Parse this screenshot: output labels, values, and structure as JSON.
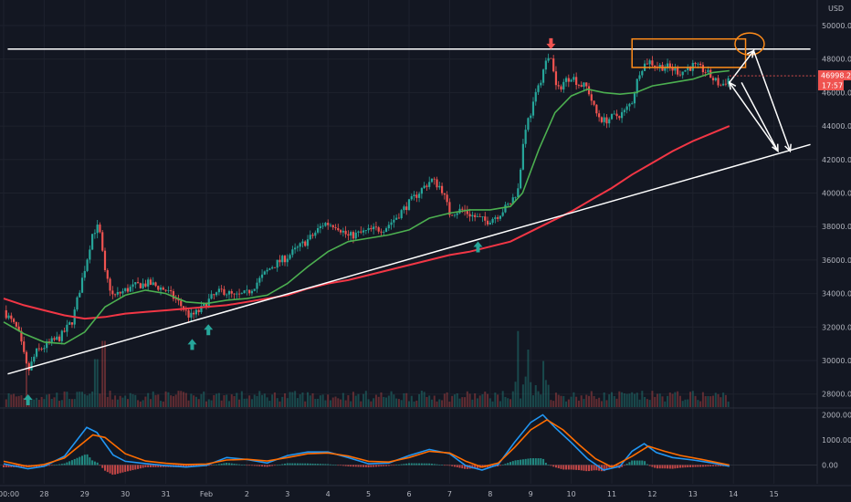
{
  "colors": {
    "background": "#131722",
    "up_candle": "#26a69a",
    "down_candle": "#ef5350",
    "ma_fast": "#4caf50",
    "ma_slow": "#f23645",
    "macd": "#2196f3",
    "signal": "#ff6d00",
    "annotation_white": "#ffffff",
    "annotation_orange": "#ff8c1a",
    "arrow_green": "#26a69a",
    "arrow_red": "#ef5350",
    "price_tag": "#ef5350"
  },
  "chart_data": [
    {
      "type": "candlestick",
      "title": "",
      "currency_label": "USD",
      "price_tag": "46998.29",
      "countdown_tag": "17:57",
      "y_ticks": [
        28000,
        30000,
        32000,
        34000,
        36000,
        38000,
        40000,
        42000,
        44000,
        46000,
        48000,
        50000
      ],
      "y_tick_labels": [
        "28000.00",
        "30000.00",
        "32000.00",
        "34000.00",
        "36000.00",
        "38000.00",
        "40000.00",
        "42000.00",
        "44000.00",
        "46000.00",
        "48000.00",
        "50000.00"
      ],
      "ylim": [
        27400,
        51300
      ],
      "x_ticks": [
        {
          "label": "00:00",
          "x": 0
        },
        {
          "label": "28",
          "x": 1
        },
        {
          "label": "29",
          "x": 2
        },
        {
          "label": "30",
          "x": 3
        },
        {
          "label": "31",
          "x": 4
        },
        {
          "label": "Feb",
          "x": 5
        },
        {
          "label": "2",
          "x": 6
        },
        {
          "label": "3",
          "x": 7
        },
        {
          "label": "4",
          "x": 8
        },
        {
          "label": "5",
          "x": 9
        },
        {
          "label": "6",
          "x": 10
        },
        {
          "label": "7",
          "x": 11
        },
        {
          "label": "8",
          "x": 12
        },
        {
          "label": "9",
          "x": 13
        },
        {
          "label": "10",
          "x": 14
        },
        {
          "label": "11",
          "x": 15
        },
        {
          "label": "12",
          "x": 16
        },
        {
          "label": "13",
          "x": 17
        },
        {
          "label": "14",
          "x": 18
        },
        {
          "label": "15",
          "x": 19
        }
      ],
      "x_unit": "days since 00:00",
      "xlim": [
        0,
        20.2
      ],
      "price_path": [
        [
          0.0,
          33000
        ],
        [
          0.35,
          31800
        ],
        [
          0.6,
          29300
        ],
        [
          0.8,
          30500
        ],
        [
          1.1,
          31000
        ],
        [
          1.4,
          31400
        ],
        [
          1.7,
          32400
        ],
        [
          1.9,
          34500
        ],
        [
          2.05,
          36000
        ],
        [
          2.2,
          37700
        ],
        [
          2.35,
          38000
        ],
        [
          2.5,
          35200
        ],
        [
          2.7,
          33800
        ],
        [
          3.0,
          34200
        ],
        [
          3.3,
          34500
        ],
        [
          3.6,
          34600
        ],
        [
          4.0,
          34200
        ],
        [
          4.3,
          33500
        ],
        [
          4.6,
          32600
        ],
        [
          4.85,
          33000
        ],
        [
          5.1,
          33700
        ],
        [
          5.4,
          34200
        ],
        [
          5.7,
          33800
        ],
        [
          6.0,
          34000
        ],
        [
          6.3,
          34800
        ],
        [
          6.6,
          35600
        ],
        [
          7.0,
          36200
        ],
        [
          7.3,
          36800
        ],
        [
          7.6,
          37400
        ],
        [
          7.9,
          38200
        ],
        [
          8.2,
          38100
        ],
        [
          8.5,
          37400
        ],
        [
          8.8,
          37600
        ],
        [
          9.1,
          37800
        ],
        [
          9.4,
          37900
        ],
        [
          9.7,
          38600
        ],
        [
          10.0,
          39400
        ],
        [
          10.3,
          40200
        ],
        [
          10.55,
          40800
        ],
        [
          10.8,
          40300
        ],
        [
          11.0,
          38800
        ],
        [
          11.3,
          39000
        ],
        [
          11.6,
          38600
        ],
        [
          11.9,
          38300
        ],
        [
          12.2,
          38700
        ],
        [
          12.5,
          39400
        ],
        [
          12.7,
          40300
        ],
        [
          12.85,
          43800
        ],
        [
          13.0,
          44800
        ],
        [
          13.2,
          46400
        ],
        [
          13.35,
          47700
        ],
        [
          13.5,
          48100
        ],
        [
          13.65,
          46000
        ],
        [
          13.8,
          46600
        ],
        [
          14.0,
          47000
        ],
        [
          14.2,
          46500
        ],
        [
          14.4,
          46300
        ],
        [
          14.6,
          44800
        ],
        [
          14.8,
          44300
        ],
        [
          15.0,
          44500
        ],
        [
          15.3,
          44800
        ],
        [
          15.5,
          45500
        ],
        [
          15.7,
          47400
        ],
        [
          15.9,
          47900
        ],
        [
          16.1,
          47600
        ],
        [
          16.4,
          47500
        ],
        [
          16.7,
          47200
        ],
        [
          17.0,
          47600
        ],
        [
          17.3,
          47300
        ],
        [
          17.5,
          46800
        ],
        [
          17.7,
          46400
        ],
        [
          17.9,
          46900
        ]
      ],
      "ma_fast": [
        [
          0.0,
          32300
        ],
        [
          0.5,
          31600
        ],
        [
          1.0,
          31100
        ],
        [
          1.5,
          31000
        ],
        [
          2.0,
          31700
        ],
        [
          2.5,
          33200
        ],
        [
          3.0,
          33900
        ],
        [
          3.5,
          34200
        ],
        [
          4.0,
          34000
        ],
        [
          4.5,
          33500
        ],
        [
          5.0,
          33400
        ],
        [
          5.5,
          33600
        ],
        [
          6.0,
          33700
        ],
        [
          6.5,
          33900
        ],
        [
          7.0,
          34600
        ],
        [
          7.5,
          35600
        ],
        [
          8.0,
          36500
        ],
        [
          8.5,
          37100
        ],
        [
          9.0,
          37300
        ],
        [
          9.5,
          37500
        ],
        [
          10.0,
          37800
        ],
        [
          10.5,
          38500
        ],
        [
          11.0,
          38800
        ],
        [
          11.5,
          39000
        ],
        [
          12.0,
          39000
        ],
        [
          12.5,
          39200
        ],
        [
          12.8,
          40000
        ],
        [
          13.2,
          42600
        ],
        [
          13.6,
          44800
        ],
        [
          14.0,
          45800
        ],
        [
          14.4,
          46200
        ],
        [
          14.8,
          46000
        ],
        [
          15.2,
          45900
        ],
        [
          15.6,
          46000
        ],
        [
          16.0,
          46400
        ],
        [
          16.5,
          46600
        ],
        [
          17.0,
          46800
        ],
        [
          17.5,
          47200
        ],
        [
          17.9,
          47300
        ]
      ],
      "ma_slow": [
        [
          0.0,
          33700
        ],
        [
          0.5,
          33300
        ],
        [
          1.0,
          33000
        ],
        [
          1.5,
          32700
        ],
        [
          2.0,
          32500
        ],
        [
          2.5,
          32600
        ],
        [
          3.0,
          32800
        ],
        [
          3.5,
          32900
        ],
        [
          4.0,
          33000
        ],
        [
          4.5,
          33100
        ],
        [
          5.0,
          33200
        ],
        [
          5.5,
          33300
        ],
        [
          6.0,
          33500
        ],
        [
          6.5,
          33700
        ],
        [
          7.0,
          33900
        ],
        [
          7.5,
          34300
        ],
        [
          8.0,
          34600
        ],
        [
          8.5,
          34800
        ],
        [
          9.0,
          35100
        ],
        [
          9.5,
          35400
        ],
        [
          10.0,
          35700
        ],
        [
          10.5,
          36000
        ],
        [
          11.0,
          36300
        ],
        [
          11.5,
          36500
        ],
        [
          12.0,
          36800
        ],
        [
          12.5,
          37100
        ],
        [
          13.0,
          37700
        ],
        [
          13.5,
          38300
        ],
        [
          14.0,
          38900
        ],
        [
          14.5,
          39600
        ],
        [
          15.0,
          40300
        ],
        [
          15.5,
          41100
        ],
        [
          16.0,
          41800
        ],
        [
          16.5,
          42500
        ],
        [
          17.0,
          43100
        ],
        [
          17.5,
          43600
        ],
        [
          17.9,
          44000
        ]
      ],
      "volume_spikes": [
        [
          0.55,
          0.55
        ],
        [
          2.45,
          0.85
        ],
        [
          12.7,
          1.0
        ],
        [
          12.95,
          0.55
        ],
        [
          13.3,
          0.4
        ],
        [
          2.3,
          0.45
        ]
      ],
      "macd_path": [
        [
          0.0,
          50
        ],
        [
          0.6,
          -150
        ],
        [
          1.0,
          -50
        ],
        [
          1.5,
          350
        ],
        [
          2.05,
          1500
        ],
        [
          2.3,
          1300
        ],
        [
          2.7,
          400
        ],
        [
          3.0,
          150
        ],
        [
          3.5,
          60
        ],
        [
          4.0,
          -20
        ],
        [
          4.5,
          -80
        ],
        [
          5.0,
          -10
        ],
        [
          5.5,
          300
        ],
        [
          6.0,
          220
        ],
        [
          6.5,
          80
        ],
        [
          7.0,
          380
        ],
        [
          7.5,
          520
        ],
        [
          8.0,
          520
        ],
        [
          8.5,
          300
        ],
        [
          9.0,
          50
        ],
        [
          9.5,
          80
        ],
        [
          10.0,
          380
        ],
        [
          10.5,
          620
        ],
        [
          11.0,
          450
        ],
        [
          11.4,
          -30
        ],
        [
          11.8,
          -200
        ],
        [
          12.2,
          20
        ],
        [
          12.6,
          900
        ],
        [
          13.0,
          1700
        ],
        [
          13.3,
          2000
        ],
        [
          13.6,
          1500
        ],
        [
          14.0,
          900
        ],
        [
          14.4,
          250
        ],
        [
          14.8,
          -200
        ],
        [
          15.2,
          -50
        ],
        [
          15.5,
          550
        ],
        [
          15.8,
          850
        ],
        [
          16.1,
          500
        ],
        [
          16.5,
          300
        ],
        [
          17.0,
          200
        ],
        [
          17.5,
          80
        ],
        [
          17.9,
          -50
        ]
      ],
      "signal_path": [
        [
          0.0,
          150
        ],
        [
          0.6,
          -60
        ],
        [
          1.0,
          20
        ],
        [
          1.5,
          280
        ],
        [
          2.2,
          1200
        ],
        [
          2.5,
          1100
        ],
        [
          3.0,
          450
        ],
        [
          3.5,
          160
        ],
        [
          4.0,
          70
        ],
        [
          4.5,
          20
        ],
        [
          5.0,
          40
        ],
        [
          5.5,
          200
        ],
        [
          6.0,
          230
        ],
        [
          6.5,
          160
        ],
        [
          7.0,
          300
        ],
        [
          7.5,
          450
        ],
        [
          8.0,
          480
        ],
        [
          8.5,
          360
        ],
        [
          9.0,
          150
        ],
        [
          9.5,
          120
        ],
        [
          10.0,
          300
        ],
        [
          10.5,
          550
        ],
        [
          11.0,
          480
        ],
        [
          11.4,
          150
        ],
        [
          11.8,
          -80
        ],
        [
          12.2,
          80
        ],
        [
          12.6,
          700
        ],
        [
          13.0,
          1400
        ],
        [
          13.4,
          1800
        ],
        [
          13.8,
          1400
        ],
        [
          14.2,
          800
        ],
        [
          14.6,
          250
        ],
        [
          15.0,
          -80
        ],
        [
          15.5,
          350
        ],
        [
          15.9,
          750
        ],
        [
          16.3,
          550
        ],
        [
          16.7,
          380
        ],
        [
          17.2,
          230
        ],
        [
          17.6,
          100
        ],
        [
          17.9,
          0
        ]
      ],
      "macd_ticks": [
        0,
        1000,
        2000
      ],
      "macd_tick_labels": [
        "0.00",
        "1000.00",
        "2000.00"
      ],
      "macd_ylim": [
        -800,
        2200
      ],
      "annotations": {
        "resistance_line": [
          [
            0.1,
            48600
          ],
          [
            19.9,
            48600
          ]
        ],
        "support_line": [
          [
            0.1,
            29200
          ],
          [
            19.9,
            42900
          ]
        ],
        "green_arrows_x": [
          0.6,
          4.65,
          5.05,
          11.7
        ],
        "red_arrow_x": 13.5,
        "orange_box": [
          15.5,
          18.3,
          47500,
          49200
        ],
        "orange_circle": [
          18.4,
          48900
        ],
        "projection": [
          [
            17.9,
            46600
          ],
          [
            18.5,
            48500
          ],
          [
            19.4,
            42500
          ],
          [
            18.2,
            46600
          ],
          [
            19.1,
            42500
          ],
          [
            17.9,
            46600
          ]
        ]
      }
    }
  ]
}
